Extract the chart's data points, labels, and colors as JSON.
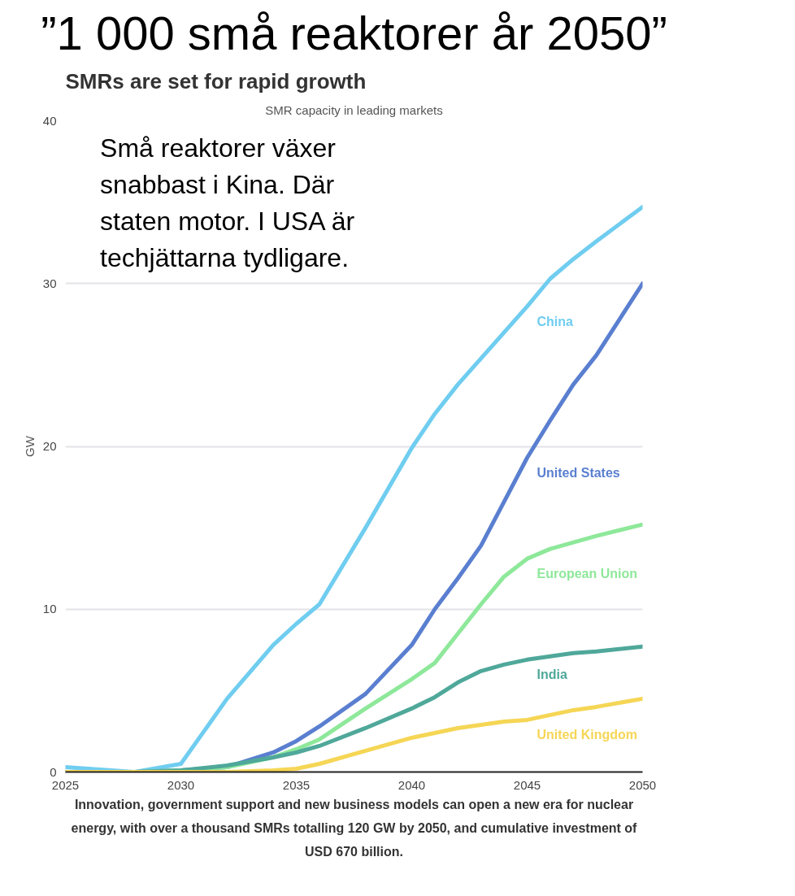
{
  "chart_data": {
    "type": "line",
    "title": "”1 000 små reaktorer år 2050”",
    "subtitle": "SMRs are set for rapid growth",
    "annotations": [
      "SMR capacity in leading markets",
      "Små reaktorer växer snabbast i Kina.  Där staten motor. I USA är techjättarna tydligare.",
      "Innovation, government support and new business models can open a new era for nuclear energy, with over a thousand SMRs totalling 120 GW by 2050, and cumulative investment of USD 670 billion."
    ],
    "ylabel": "GW",
    "x": [
      2025,
      2028,
      2030,
      2032,
      2034,
      2035,
      2036,
      2038,
      2040,
      2041,
      2042,
      2043,
      2044,
      2045,
      2046,
      2047,
      2048,
      2050
    ],
    "series": [
      {
        "name": "China",
        "color": "#6fcdf0",
        "values": [
          0.3,
          0.0,
          0.5,
          4.5,
          7.8,
          9.1,
          10.3,
          15.0,
          19.9,
          22.0,
          23.8,
          25.4,
          27.0,
          28.6,
          30.3,
          31.5,
          32.6,
          34.7
        ]
      },
      {
        "name": "United States",
        "color": "#5a7fd0",
        "values": [
          0.0,
          0.0,
          0.1,
          0.3,
          1.2,
          1.9,
          2.8,
          4.8,
          7.8,
          10.0,
          11.9,
          13.9,
          16.6,
          19.3,
          21.6,
          23.8,
          25.6,
          30.0
        ]
      },
      {
        "name": "European Union",
        "color": "#8ee89a",
        "values": [
          0.0,
          0.0,
          0.1,
          0.3,
          0.9,
          1.4,
          2.0,
          3.9,
          5.7,
          6.7,
          8.5,
          10.3,
          12.0,
          13.1,
          13.7,
          14.1,
          14.5,
          15.2
        ]
      },
      {
        "name": "India",
        "color": "#4fa89a",
        "values": [
          0.0,
          0.0,
          0.1,
          0.4,
          0.9,
          1.2,
          1.6,
          2.7,
          3.9,
          4.6,
          5.5,
          6.2,
          6.6,
          6.9,
          7.1,
          7.3,
          7.4,
          7.7
        ]
      },
      {
        "name": "United Kingdom",
        "color": "#f5d655",
        "values": [
          0.0,
          0.0,
          0.0,
          0.0,
          0.1,
          0.2,
          0.5,
          1.3,
          2.1,
          2.4,
          2.7,
          2.9,
          3.1,
          3.2,
          3.5,
          3.8,
          4.0,
          4.5
        ]
      }
    ],
    "xlim": [
      2025,
      2050
    ],
    "xticks": [
      2025,
      2030,
      2035,
      2040,
      2045,
      2050
    ],
    "ylim": [
      0,
      40
    ],
    "yticks": [
      0,
      10,
      20,
      30,
      40
    ],
    "grid": "y"
  }
}
